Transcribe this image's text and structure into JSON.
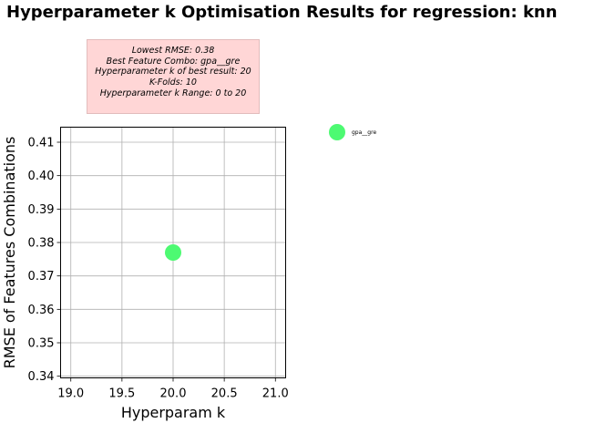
{
  "chart_data": {
    "type": "scatter",
    "title": "Hyperparameter k Optimisation Results for regression: knn",
    "xlabel": "Hyperparam k",
    "ylabel": "RMSE of Features Combinations",
    "xlim": [
      18.9,
      21.1
    ],
    "ylim": [
      0.3395,
      0.4145
    ],
    "xticks": [
      19.0,
      19.5,
      20.0,
      20.5,
      21.0
    ],
    "xtick_labels": [
      "19.0",
      "19.5",
      "20.0",
      "20.5",
      "21.0"
    ],
    "yticks": [
      0.34,
      0.35,
      0.36,
      0.37,
      0.38,
      0.39,
      0.4,
      0.41
    ],
    "ytick_labels": [
      "0.34",
      "0.35",
      "0.36",
      "0.37",
      "0.38",
      "0.39",
      "0.40",
      "0.41"
    ],
    "grid": true,
    "legend_position": "outside-right",
    "series": [
      {
        "name": "gpa__gre",
        "color": "#4dfa72",
        "points": [
          {
            "x": 20,
            "y": 0.377
          }
        ]
      }
    ],
    "annotation": {
      "lines": [
        "Lowest RMSE: 0.38",
        "Best Feature Combo: gpa__gre",
        "Hyperparameter k of best result: 20",
        "K-Folds: 10",
        "Hyperparameter k Range: 0 to 20"
      ],
      "background": "#ffd6d6",
      "border": "#e2bcbc"
    }
  }
}
